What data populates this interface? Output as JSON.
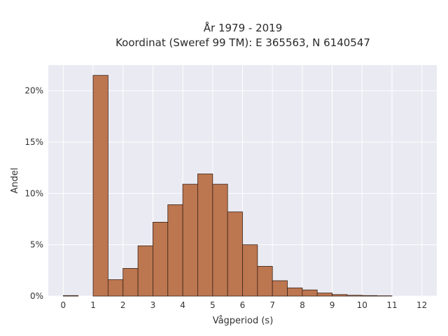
{
  "chart_data": {
    "type": "bar",
    "title": "År 1979 - 2019",
    "subtitle": "Koordinat (Sweref 99 TM): E 365563, N 6140547",
    "xlabel": "Vågperiod (s)",
    "ylabel": "Andel",
    "xlim": [
      -0.5,
      12.5
    ],
    "ylim": [
      0,
      22.5
    ],
    "x_ticks": [
      0,
      1,
      2,
      3,
      4,
      5,
      6,
      7,
      8,
      9,
      10,
      11,
      12
    ],
    "y_ticks": [
      0,
      5,
      10,
      15,
      20
    ],
    "y_tick_labels": [
      "0%",
      "5%",
      "10%",
      "15%",
      "20%"
    ],
    "bin_width": 0.5,
    "bins": [
      {
        "start": 0.0,
        "value": 0.05
      },
      {
        "start": 1.0,
        "value": 21.5
      },
      {
        "start": 1.5,
        "value": 1.6
      },
      {
        "start": 2.0,
        "value": 2.7
      },
      {
        "start": 2.5,
        "value": 4.9
      },
      {
        "start": 3.0,
        "value": 7.2
      },
      {
        "start": 3.5,
        "value": 8.9
      },
      {
        "start": 4.0,
        "value": 10.9
      },
      {
        "start": 4.5,
        "value": 11.9
      },
      {
        "start": 5.0,
        "value": 10.9
      },
      {
        "start": 5.5,
        "value": 8.2
      },
      {
        "start": 6.0,
        "value": 5.0
      },
      {
        "start": 6.5,
        "value": 2.9
      },
      {
        "start": 7.0,
        "value": 1.5
      },
      {
        "start": 7.5,
        "value": 0.8
      },
      {
        "start": 8.0,
        "value": 0.6
      },
      {
        "start": 8.5,
        "value": 0.3
      },
      {
        "start": 9.0,
        "value": 0.15
      },
      {
        "start": 9.5,
        "value": 0.08
      },
      {
        "start": 10.0,
        "value": 0.05
      },
      {
        "start": 10.5,
        "value": 0.03
      }
    ],
    "grid": true,
    "colors": {
      "bar_fill": "#bc7650",
      "bar_edge": "#3a2418",
      "plot_bg": "#eaeaf2",
      "grid": "#ffffff"
    }
  }
}
